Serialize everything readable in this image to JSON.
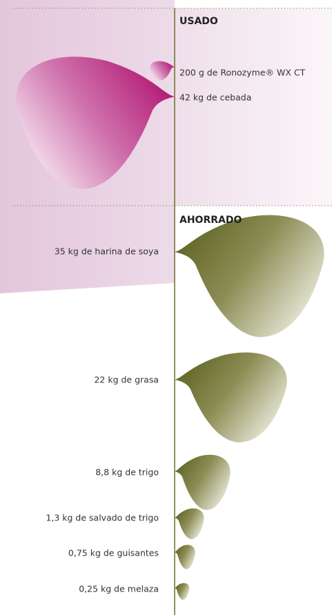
{
  "used": {
    "title": "USADO",
    "items": [
      "200 g de Ronozyme® WX CT",
      "42 kg de cebada"
    ]
  },
  "saved": {
    "title": "AHORRADO",
    "items": [
      "35 kg de harina de soya",
      "22 kg de grasa",
      "8,8 kg de trigo",
      "1,3 kg de salvado de trigo",
      "0,75 kg de guisantes",
      "0,25 kg de melaza"
    ]
  }
}
